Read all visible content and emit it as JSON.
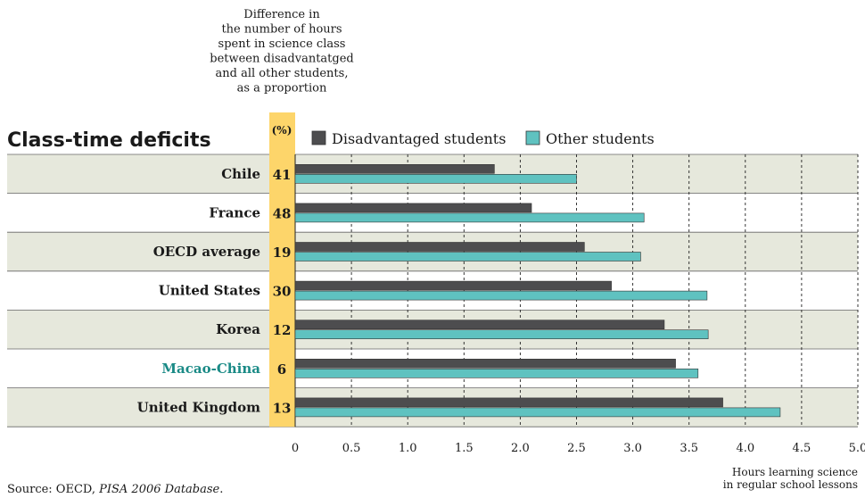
{
  "chart_data": {
    "type": "bar",
    "orientation": "horizontal",
    "title": "Class-time deficits",
    "header_note": [
      "Difference in",
      "the number of hours",
      "spent in science class",
      "between disadvantatged",
      "and all other students,",
      "as a proportion"
    ],
    "pct_column_label": "(%)",
    "categories": [
      "Chile",
      "France",
      "OECD average",
      "United States",
      "Korea",
      "Macao-China",
      "United Kingdom"
    ],
    "proportion_values": [
      41,
      48,
      19,
      30,
      12,
      6,
      13
    ],
    "series": [
      {
        "name": "Disadvantaged students",
        "color": "#4d4d4f",
        "values": [
          1.77,
          2.1,
          2.57,
          2.81,
          3.28,
          3.38,
          3.8
        ]
      },
      {
        "name": "Other students",
        "color": "#5fc2c0",
        "values": [
          2.5,
          3.1,
          3.07,
          3.66,
          3.67,
          3.58,
          4.31
        ]
      }
    ],
    "x_ticks": [
      "0",
      "0.5",
      "1.0",
      "1.5",
      "2.0",
      "2.5",
      "3.0",
      "3.5",
      "4.0",
      "4.5",
      "5.0"
    ],
    "xlim": [
      0,
      5
    ],
    "xlabel": [
      "Hours learning science",
      "in regular school lessons"
    ],
    "highlight_category": "Macao-China",
    "highlight_color": "#1a8a86",
    "row_shade_color": "#e6e8dc",
    "pct_column_color": "#fdd56a",
    "grid": "dashed vertical",
    "legend_position": "top"
  },
  "source": {
    "prefix": "Source: OECD, ",
    "italic": "PISA 2006 Database",
    "suffix": "."
  }
}
